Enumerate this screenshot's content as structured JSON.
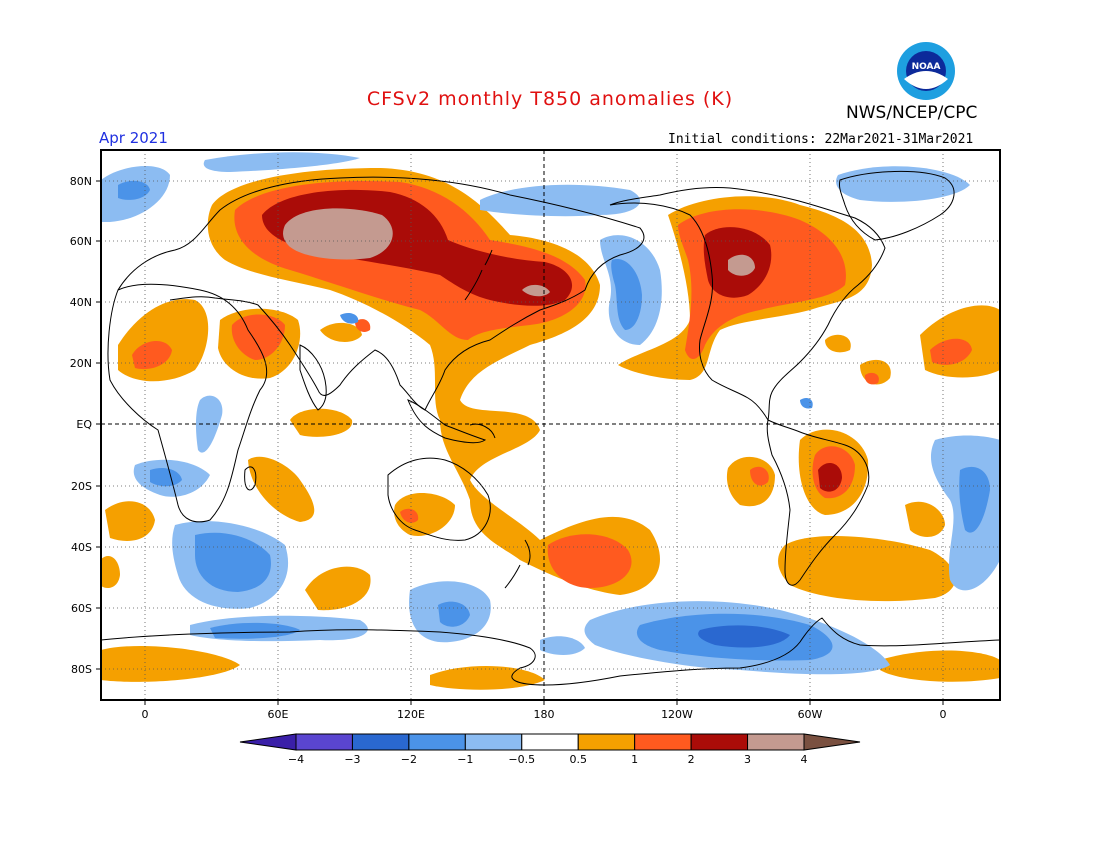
{
  "title": "CFSv2 monthly T850 anomalies (K)",
  "agency": "NWS/NCEP/CPC",
  "logo_text": "NOAA",
  "valid_month": "Apr 2021",
  "initial_conditions": "Initial conditions: 22Mar2021-31Mar2021",
  "map": {
    "lat_labels": [
      "80N",
      "60N",
      "40N",
      "20N",
      "EQ",
      "20S",
      "40S",
      "60S",
      "80S"
    ],
    "lon_labels": [
      "0",
      "60E",
      "120E",
      "180",
      "120W",
      "60W",
      "0"
    ]
  },
  "colorbar": {
    "labels": [
      "−4",
      "−3",
      "−2",
      "−1",
      "−0.5",
      "0.5",
      "1",
      "2",
      "3",
      "4"
    ],
    "colors": [
      "#3a1fa8",
      "#5a45d0",
      "#2a68d0",
      "#4b93e8",
      "#8cbcf2",
      "#ffffff",
      "#f5a000",
      "#ff5a1f",
      "#aa0c08",
      "#c49a90",
      "#7a5040"
    ]
  },
  "colors": {
    "title": "#e01010",
    "month": "#2030e0"
  }
}
